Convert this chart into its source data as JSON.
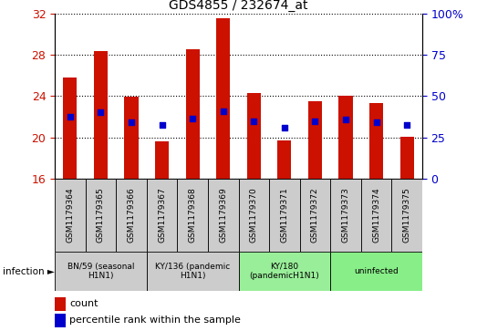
{
  "title": "GDS4855 / 232674_at",
  "samples": [
    "GSM1179364",
    "GSM1179365",
    "GSM1179366",
    "GSM1179367",
    "GSM1179368",
    "GSM1179369",
    "GSM1179370",
    "GSM1179371",
    "GSM1179372",
    "GSM1179373",
    "GSM1179374",
    "GSM1179375"
  ],
  "counts": [
    25.8,
    28.3,
    23.9,
    19.6,
    28.5,
    31.5,
    24.3,
    19.7,
    23.5,
    24.0,
    23.3,
    20.1
  ],
  "percentile_ranks_pct": [
    37.5,
    40.0,
    34.0,
    32.5,
    36.5,
    41.0,
    34.5,
    31.0,
    34.5,
    36.0,
    34.0,
    32.5
  ],
  "ylim_left": [
    16,
    32
  ],
  "ylim_right": [
    0,
    100
  ],
  "yticks_left": [
    16,
    20,
    24,
    28,
    32
  ],
  "yticks_right": [
    0,
    25,
    50,
    75,
    100
  ],
  "ytick_labels_right": [
    "0",
    "25",
    "50",
    "75",
    "100%"
  ],
  "bar_color": "#cc1100",
  "dot_color": "#0000cc",
  "groups": [
    {
      "label": "BN/59 (seasonal\nH1N1)",
      "start": 0,
      "end": 2,
      "color": "#cccccc"
    },
    {
      "label": "KY/136 (pandemic\nH1N1)",
      "start": 3,
      "end": 5,
      "color": "#cccccc"
    },
    {
      "label": "KY/180\n(pandemicH1N1)",
      "start": 6,
      "end": 8,
      "color": "#99ee99"
    },
    {
      "label": "uninfected",
      "start": 9,
      "end": 11,
      "color": "#88ee88"
    }
  ],
  "infection_label": "infection",
  "legend_count_label": "count",
  "legend_percentile_label": "percentile rank within the sample",
  "bar_width": 0.45,
  "title_color": "#000000",
  "left_axis_color": "#cc1100",
  "right_axis_color": "#0000cc",
  "sample_box_color": "#cccccc"
}
